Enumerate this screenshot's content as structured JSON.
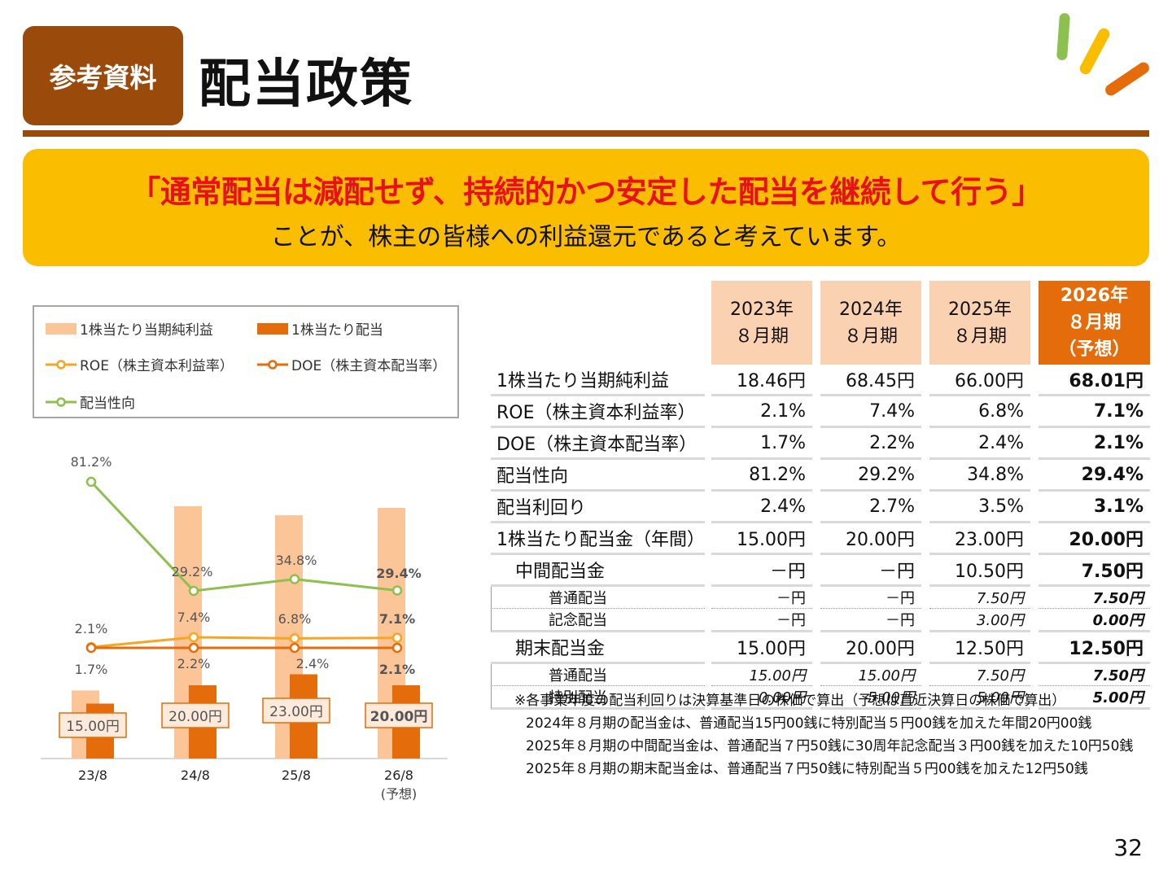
{
  "header": {
    "badge": "参考資料",
    "title": "配当政策"
  },
  "banner": {
    "main": "「通常配当は減配せず、持続的かつ安定した配当を継続して行う」",
    "sub": "ことが、株主の皆様への利益還元であると考えています。"
  },
  "legend": {
    "eps": "1株当たり当期純利益",
    "dps": "1株当たり配当",
    "roe": "ROE（株主資本利益率）",
    "doe": "DOE（株主資本配当率）",
    "payout": "配当性向"
  },
  "colors": {
    "brown": "#9a4a0b",
    "yellow": "#fbbd00",
    "red": "#e8101a",
    "orange": "#e46c0a",
    "peach": "#fbc598",
    "green": "#8cc04f",
    "roe": "#f5a623"
  },
  "chart_data": {
    "type": "bar",
    "categories": [
      "23/8",
      "24/8",
      "25/8",
      "26/8"
    ],
    "category_note": "(予想)",
    "series": [
      {
        "name": "1株当たり当期純利益",
        "values": [
          18.46,
          68.45,
          66.0,
          68.01
        ]
      },
      {
        "name": "1株当たり配当",
        "values": [
          15.0,
          20.0,
          23.0,
          20.0
        ],
        "labels": [
          "15.00円",
          "20.00円",
          "23.00円",
          "20.00円"
        ]
      },
      {
        "name": "ROE（株主資本利益率）",
        "values": [
          2.1,
          7.4,
          6.8,
          7.1
        ],
        "labels": [
          "2.1%",
          "7.4%",
          "6.8%",
          "7.1%"
        ]
      },
      {
        "name": "DOE（株主資本配当率）",
        "values": [
          1.7,
          2.2,
          2.4,
          2.1
        ],
        "labels": [
          "1.7%",
          "2.2%",
          "2.4%",
          "2.1%"
        ]
      },
      {
        "name": "配当性向",
        "values": [
          81.2,
          29.2,
          34.8,
          29.4
        ],
        "labels": [
          "81.2%",
          "29.2%",
          "34.8%",
          "29.4%"
        ]
      }
    ]
  },
  "table": {
    "headers": [
      {
        "line1": "2023年",
        "line2": "８月期",
        "line3": ""
      },
      {
        "line1": "2024年",
        "line2": "８月期",
        "line3": ""
      },
      {
        "line1": "2025年",
        "line2": "８月期",
        "line3": ""
      },
      {
        "line1": "2026年",
        "line2": "８月期",
        "line3": "（予想）"
      }
    ],
    "rows": [
      {
        "label": "1株当たり当期純利益",
        "values": [
          "18.46円",
          "68.45円",
          "66.00円",
          "68.01円"
        ]
      },
      {
        "label": "ROE（株主資本利益率）",
        "values": [
          "2.1%",
          "7.4%",
          "6.8%",
          "7.1%"
        ]
      },
      {
        "label": "DOE（株主資本配当率）",
        "values": [
          "1.7%",
          "2.2%",
          "2.4%",
          "2.1%"
        ]
      },
      {
        "label": "配当性向",
        "values": [
          "81.2%",
          "29.2%",
          "34.8%",
          "29.4%"
        ]
      },
      {
        "label": "配当利回り",
        "values": [
          "2.4%",
          "2.7%",
          "3.5%",
          "3.1%"
        ]
      },
      {
        "label": "1株当たり配当金（年間）",
        "values": [
          "15.00円",
          "20.00円",
          "23.00円",
          "20.00円"
        ]
      }
    ],
    "interim": {
      "label": "中間配当金",
      "values": [
        "－円",
        "－円",
        "10.50円",
        "7.50円"
      ],
      "sub": [
        {
          "label": "普通配当",
          "values": [
            "－円",
            "－円",
            "7.50円",
            "7.50円"
          ]
        },
        {
          "label": "記念配当",
          "values": [
            "－円",
            "－円",
            "3.00円",
            "0.00円"
          ]
        }
      ]
    },
    "yearend": {
      "label": "期末配当金",
      "values": [
        "15.00円",
        "20.00円",
        "12.50円",
        "12.50円"
      ],
      "sub": [
        {
          "label": "普通配当",
          "values": [
            "15.00円",
            "15.00円",
            "7.50円",
            "7.50円"
          ]
        },
        {
          "label": "特別配当",
          "values": [
            "0.00円",
            "5.00円",
            "5.00円",
            "5.00円"
          ]
        }
      ]
    }
  },
  "notes": [
    "※各事業年度の配当利回りは決算基準日の株価で算出（予想は直近決算日の株価で算出）",
    "2024年８月期の配当金は、普通配当15円00銭に特別配当５円00銭を加えた年間20円00銭",
    "2025年８月期の中間配当金は、普通配当７円50銭に30周年記念配当３円00銭を加えた10円50銭",
    "2025年８月期の期末配当金は、普通配当７円50銭に特別配当５円00銭を加えた12円50銭"
  ],
  "page_number": "32"
}
